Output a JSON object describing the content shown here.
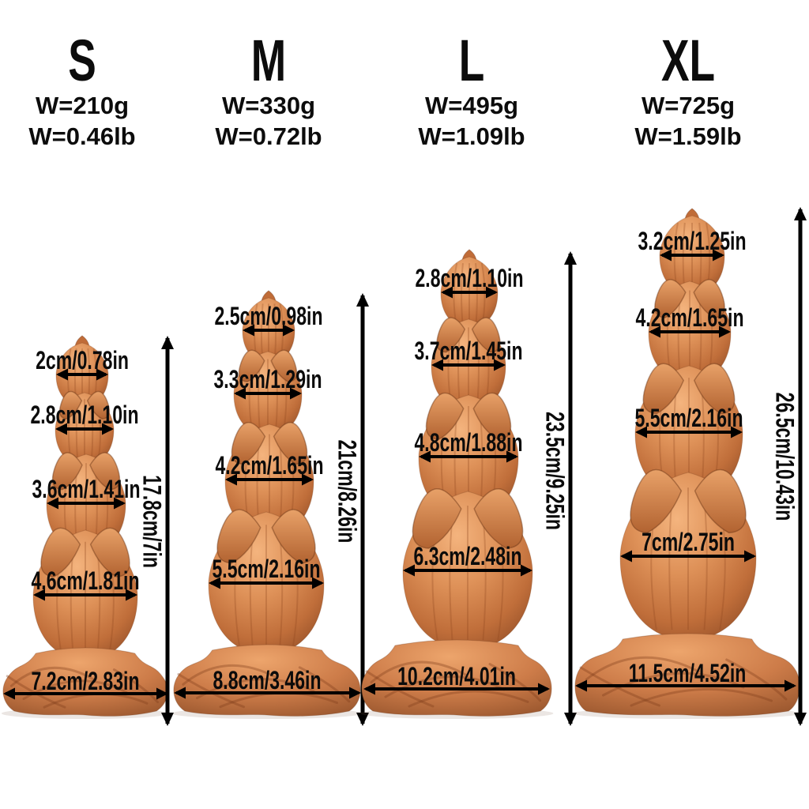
{
  "colors": {
    "background": "#ffffff",
    "text": "#0b0b0b",
    "arrow": "#000000",
    "product_highlight": "#f4b47e",
    "product_mid": "#cd7c49",
    "product_shadow": "#8f4c26"
  },
  "sizes": [
    {
      "label": "S",
      "weight_g": "W=210g",
      "weight_lb": "W=0.46lb",
      "bulb_widths": [
        "2cm/0.78in",
        "2.8cm/1.10in",
        "3.6cm/1.41in",
        "4.6cm/1.81in"
      ],
      "base_width": "7.2cm/2.83in",
      "height": "17.8cm/7in"
    },
    {
      "label": "M",
      "weight_g": "W=330g",
      "weight_lb": "W=0.72lb",
      "bulb_widths": [
        "2.5cm/0.98in",
        "3.3cm/1.29in",
        "4.2cm/1.65in",
        "5.5cm/2.16in"
      ],
      "base_width": "8.8cm/3.46in",
      "height": "21cm/8.26in"
    },
    {
      "label": "L",
      "weight_g": "W=495g",
      "weight_lb": "W=1.09lb",
      "bulb_widths": [
        "2.8cm/1.10in",
        "3.7cm/1.45in",
        "4.8cm/1.88in",
        "6.3cm/2.48in"
      ],
      "base_width": "10.2cm/4.01in",
      "height": "23.5cm/9.25in"
    },
    {
      "label": "XL",
      "weight_g": "W=725g",
      "weight_lb": "W=1.59lb",
      "bulb_widths": [
        "3.2cm/1.25in",
        "4.2cm/1.65in",
        "5.5cm/2.16in",
        "7cm/2.75in"
      ],
      "base_width": "11.5cm/4.52in",
      "height": "26.5cm/10.43in"
    }
  ]
}
